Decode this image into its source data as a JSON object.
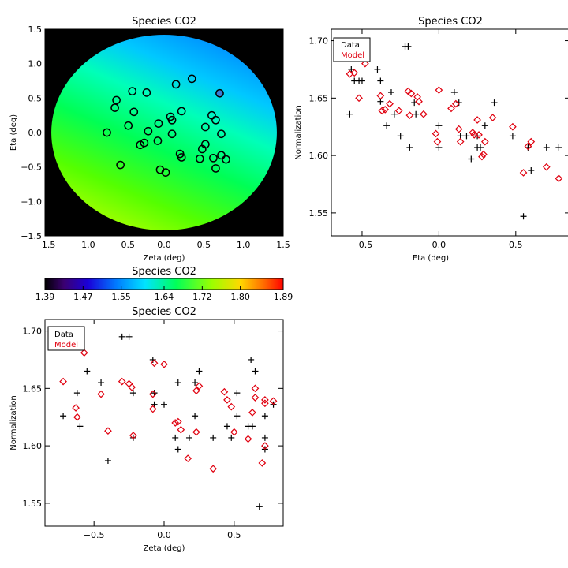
{
  "colors": {
    "data_marker": "#000000",
    "model_marker": "#e0000f",
    "map_background": "#000000",
    "highlight_marker": "#3a7bd5"
  },
  "map": {
    "title": "Species CO2",
    "xlabel": "Zeta (deg)",
    "ylabel": "Eta (deg)",
    "xlim": [
      -1.5,
      1.5
    ],
    "ylim": [
      -1.5,
      1.5
    ],
    "xticks": [
      "−1.5",
      "−1.0",
      "−0.5",
      "0.0",
      "0.5",
      "1.0",
      "1.5"
    ],
    "yticks": [
      "−1.5",
      "−1.0",
      "−0.5",
      "0.0",
      "0.5",
      "1.0",
      "1.5"
    ],
    "xtick_vals": [
      -1.5,
      -1.0,
      -0.5,
      0.0,
      0.5,
      1.0,
      1.5
    ],
    "ytick_vals": [
      -1.5,
      -1.0,
      -0.5,
      0.0,
      0.5,
      1.0,
      1.5
    ],
    "disk_radius": 1.42
  },
  "colorbar": {
    "title": "Species CO2",
    "min": 1.39,
    "max": 1.89,
    "ticks": [
      "1.39",
      "1.47",
      "1.55",
      "1.64",
      "1.72",
      "1.80",
      "1.89"
    ],
    "tick_vals": [
      1.39,
      1.47,
      1.55,
      1.64,
      1.72,
      1.8,
      1.89
    ]
  },
  "eta_plot": {
    "title": "Species CO2",
    "xlabel": "Eta (deg)",
    "ylabel": "Normalization",
    "xlim": [
      -0.7,
      0.85
    ],
    "ylim": [
      1.53,
      1.71
    ],
    "xticks": [
      "−0.5",
      "0.0",
      "0.5"
    ],
    "xtick_vals": [
      -0.5,
      0.0,
      0.5
    ],
    "yticks": [
      "1.55",
      "1.60",
      "1.65",
      "1.70"
    ],
    "ytick_vals": [
      1.55,
      1.6,
      1.65,
      1.7
    ],
    "legend": {
      "data": "Data",
      "model": "Model"
    }
  },
  "zeta_plot": {
    "title": "Species CO2",
    "xlabel": "Zeta (deg)",
    "ylabel": "Normalization",
    "xlim": [
      -0.85,
      0.85
    ],
    "ylim": [
      1.53,
      1.71
    ],
    "xticks": [
      "−0.5",
      "0.0",
      "0.5"
    ],
    "xtick_vals": [
      -0.5,
      0.0,
      0.5
    ],
    "yticks": [
      "1.55",
      "1.60",
      "1.65",
      "1.70"
    ],
    "ytick_vals": [
      1.55,
      1.6,
      1.65,
      1.7
    ],
    "legend": {
      "data": "Data",
      "model": "Model"
    }
  },
  "chart_data": [
    {
      "type": "scatter",
      "title": "Species CO2",
      "subtype": "color-map with sample locations",
      "xlabel": "Zeta (deg)",
      "ylabel": "Eta (deg)",
      "xlim": [
        -1.5,
        1.5
      ],
      "ylim": [
        -1.5,
        1.5
      ],
      "color_range": [
        1.39,
        1.89
      ],
      "points": [
        {
          "zeta": -0.72,
          "eta": 0.0
        },
        {
          "zeta": -0.62,
          "eta": 0.36
        },
        {
          "zeta": -0.6,
          "eta": 0.47
        },
        {
          "zeta": -0.55,
          "eta": -0.47
        },
        {
          "zeta": -0.45,
          "eta": 0.1
        },
        {
          "zeta": -0.4,
          "eta": 0.6
        },
        {
          "zeta": -0.38,
          "eta": 0.3
        },
        {
          "zeta": -0.3,
          "eta": -0.18
        },
        {
          "zeta": -0.25,
          "eta": -0.15
        },
        {
          "zeta": -0.22,
          "eta": 0.58
        },
        {
          "zeta": -0.2,
          "eta": 0.02
        },
        {
          "zeta": -0.08,
          "eta": -0.12
        },
        {
          "zeta": -0.07,
          "eta": 0.13
        },
        {
          "zeta": -0.05,
          "eta": -0.54
        },
        {
          "zeta": 0.02,
          "eta": -0.58
        },
        {
          "zeta": 0.08,
          "eta": 0.23
        },
        {
          "zeta": 0.1,
          "eta": 0.18
        },
        {
          "zeta": 0.1,
          "eta": -0.02
        },
        {
          "zeta": 0.15,
          "eta": 0.7
        },
        {
          "zeta": 0.2,
          "eta": -0.31
        },
        {
          "zeta": 0.22,
          "eta": -0.36
        },
        {
          "zeta": 0.22,
          "eta": 0.31
        },
        {
          "zeta": 0.35,
          "eta": 0.78
        },
        {
          "zeta": 0.45,
          "eta": -0.38
        },
        {
          "zeta": 0.48,
          "eta": -0.24
        },
        {
          "zeta": 0.52,
          "eta": -0.17
        },
        {
          "zeta": 0.52,
          "eta": 0.08
        },
        {
          "zeta": 0.6,
          "eta": 0.25
        },
        {
          "zeta": 0.62,
          "eta": -0.37
        },
        {
          "zeta": 0.65,
          "eta": 0.18
        },
        {
          "zeta": 0.65,
          "eta": -0.52
        },
        {
          "zeta": 0.7,
          "eta": 0.57
        },
        {
          "zeta": 0.72,
          "eta": -0.02
        },
        {
          "zeta": 0.72,
          "eta": -0.33
        },
        {
          "zeta": 0.78,
          "eta": -0.39
        }
      ]
    },
    {
      "type": "scatter",
      "title": "Species CO2",
      "xlabel": "Eta (deg)",
      "ylabel": "Normalization",
      "xlim": [
        -0.7,
        0.85
      ],
      "ylim": [
        1.53,
        1.71
      ],
      "legend": [
        "Data",
        "Model"
      ],
      "series": [
        {
          "name": "Data",
          "marker": "plus",
          "points": [
            [
              -0.57,
              1.675
            ],
            [
              -0.55,
              1.665
            ],
            [
              -0.52,
              1.665
            ],
            [
              -0.5,
              1.665
            ],
            [
              -0.58,
              1.636
            ],
            [
              -0.4,
              1.675
            ],
            [
              -0.38,
              1.665
            ],
            [
              -0.38,
              1.647
            ],
            [
              -0.34,
              1.626
            ],
            [
              -0.31,
              1.655
            ],
            [
              -0.29,
              1.636
            ],
            [
              -0.25,
              1.617
            ],
            [
              -0.22,
              1.695
            ],
            [
              -0.2,
              1.695
            ],
            [
              -0.19,
              1.607
            ],
            [
              -0.16,
              1.646
            ],
            [
              -0.15,
              1.636
            ],
            [
              0.0,
              1.626
            ],
            [
              0.0,
              1.607
            ],
            [
              0.1,
              1.655
            ],
            [
              0.13,
              1.646
            ],
            [
              0.14,
              1.617
            ],
            [
              0.18,
              1.617
            ],
            [
              0.21,
              1.597
            ],
            [
              0.25,
              1.617
            ],
            [
              0.25,
              1.607
            ],
            [
              0.27,
              1.607
            ],
            [
              0.3,
              1.626
            ],
            [
              0.36,
              1.646
            ],
            [
              0.48,
              1.617
            ],
            [
              0.55,
              1.547
            ],
            [
              0.58,
              1.607
            ],
            [
              0.6,
              1.587
            ],
            [
              0.7,
              1.607
            ],
            [
              0.78,
              1.607
            ]
          ]
        },
        {
          "name": "Model",
          "marker": "diamond",
          "points": [
            [
              -0.58,
              1.671
            ],
            [
              -0.55,
              1.672
            ],
            [
              -0.52,
              1.65
            ],
            [
              -0.48,
              1.68
            ],
            [
              -0.38,
              1.652
            ],
            [
              -0.37,
              1.639
            ],
            [
              -0.35,
              1.64
            ],
            [
              -0.32,
              1.645
            ],
            [
              -0.26,
              1.639
            ],
            [
              -0.2,
              1.656
            ],
            [
              -0.19,
              1.635
            ],
            [
              -0.18,
              1.654
            ],
            [
              -0.14,
              1.651
            ],
            [
              -0.13,
              1.647
            ],
            [
              -0.1,
              1.636
            ],
            [
              -0.02,
              1.619
            ],
            [
              -0.01,
              1.612
            ],
            [
              0.0,
              1.657
            ],
            [
              0.08,
              1.641
            ],
            [
              0.11,
              1.645
            ],
            [
              0.13,
              1.623
            ],
            [
              0.14,
              1.612
            ],
            [
              0.22,
              1.62
            ],
            [
              0.23,
              1.618
            ],
            [
              0.25,
              1.631
            ],
            [
              0.26,
              1.618
            ],
            [
              0.28,
              1.599
            ],
            [
              0.29,
              1.601
            ],
            [
              0.3,
              1.612
            ],
            [
              0.35,
              1.633
            ],
            [
              0.48,
              1.625
            ],
            [
              0.55,
              1.585
            ],
            [
              0.58,
              1.608
            ],
            [
              0.6,
              1.612
            ],
            [
              0.7,
              1.59
            ],
            [
              0.78,
              1.58
            ]
          ]
        }
      ]
    },
    {
      "type": "scatter",
      "title": "Species CO2",
      "xlabel": "Zeta (deg)",
      "ylabel": "Normalization",
      "xlim": [
        -0.85,
        0.85
      ],
      "ylim": [
        1.53,
        1.71
      ],
      "legend": [
        "Data",
        "Model"
      ],
      "series": [
        {
          "name": "Data",
          "marker": "plus",
          "points": [
            [
              -0.72,
              1.626
            ],
            [
              -0.62,
              1.646
            ],
            [
              -0.6,
              1.617
            ],
            [
              -0.55,
              1.665
            ],
            [
              -0.45,
              1.655
            ],
            [
              -0.4,
              1.587
            ],
            [
              -0.3,
              1.695
            ],
            [
              -0.25,
              1.695
            ],
            [
              -0.22,
              1.646
            ],
            [
              -0.22,
              1.607
            ],
            [
              -0.08,
              1.675
            ],
            [
              -0.07,
              1.646
            ],
            [
              -0.07,
              1.636
            ],
            [
              0.0,
              1.636
            ],
            [
              0.08,
              1.607
            ],
            [
              0.1,
              1.655
            ],
            [
              0.1,
              1.597
            ],
            [
              0.18,
              1.607
            ],
            [
              0.22,
              1.626
            ],
            [
              0.22,
              1.655
            ],
            [
              0.25,
              1.665
            ],
            [
              0.35,
              1.607
            ],
            [
              0.45,
              1.617
            ],
            [
              0.48,
              1.607
            ],
            [
              0.52,
              1.646
            ],
            [
              0.52,
              1.626
            ],
            [
              0.6,
              1.617
            ],
            [
              0.62,
              1.675
            ],
            [
              0.63,
              1.617
            ],
            [
              0.65,
              1.665
            ],
            [
              0.68,
              1.547
            ],
            [
              0.72,
              1.607
            ],
            [
              0.72,
              1.626
            ],
            [
              0.72,
              1.597
            ],
            [
              0.78,
              1.636
            ]
          ]
        },
        {
          "name": "Model",
          "marker": "diamond",
          "points": [
            [
              -0.72,
              1.656
            ],
            [
              -0.63,
              1.633
            ],
            [
              -0.62,
              1.625
            ],
            [
              -0.57,
              1.681
            ],
            [
              -0.45,
              1.645
            ],
            [
              -0.4,
              1.613
            ],
            [
              -0.3,
              1.656
            ],
            [
              -0.25,
              1.654
            ],
            [
              -0.23,
              1.651
            ],
            [
              -0.22,
              1.609
            ],
            [
              -0.08,
              1.645
            ],
            [
              -0.08,
              1.632
            ],
            [
              -0.07,
              1.672
            ],
            [
              0.0,
              1.671
            ],
            [
              0.08,
              1.62
            ],
            [
              0.1,
              1.621
            ],
            [
              0.12,
              1.614
            ],
            [
              0.17,
              1.589
            ],
            [
              0.23,
              1.612
            ],
            [
              0.23,
              1.648
            ],
            [
              0.25,
              1.652
            ],
            [
              0.35,
              1.58
            ],
            [
              0.43,
              1.647
            ],
            [
              0.45,
              1.64
            ],
            [
              0.48,
              1.634
            ],
            [
              0.5,
              1.612
            ],
            [
              0.6,
              1.606
            ],
            [
              0.63,
              1.629
            ],
            [
              0.65,
              1.65
            ],
            [
              0.65,
              1.642
            ],
            [
              0.7,
              1.585
            ],
            [
              0.72,
              1.6
            ],
            [
              0.72,
              1.637
            ],
            [
              0.72,
              1.64
            ],
            [
              0.78,
              1.639
            ]
          ]
        }
      ]
    }
  ]
}
